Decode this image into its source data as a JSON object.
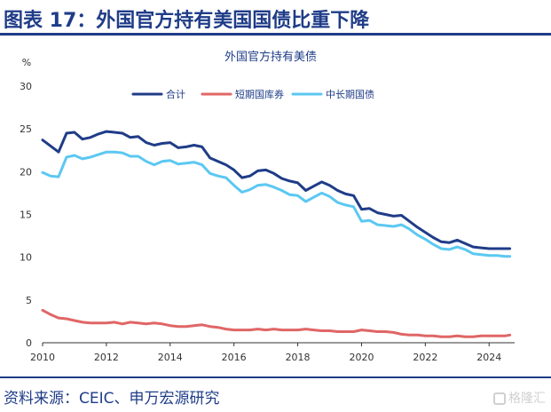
{
  "header": {
    "title": "图表 17：外国官方持有美国国债比重下降"
  },
  "source": "资料来源：CEIC、申万宏源研究",
  "watermark": "格隆汇",
  "colors": {
    "brand": "#1f3c88"
  },
  "chart_data": {
    "type": "line",
    "title": "外国官方持有美债",
    "unit": "%",
    "ylim": [
      0,
      30
    ],
    "yticks": [
      0,
      5,
      10,
      15,
      20,
      25,
      30
    ],
    "xlim": [
      2010,
      2024.8
    ],
    "xticks": [
      2010,
      2012,
      2014,
      2016,
      2018,
      2020,
      2022,
      2024
    ],
    "grid": false,
    "legend_position": "top",
    "series": [
      {
        "name": "合计",
        "color": "#1f3c88",
        "x": [
          2010.0,
          2010.25,
          2010.5,
          2010.75,
          2011.0,
          2011.25,
          2011.5,
          2011.75,
          2012.0,
          2012.25,
          2012.5,
          2012.75,
          2013.0,
          2013.25,
          2013.5,
          2013.75,
          2014.0,
          2014.25,
          2014.5,
          2014.75,
          2015.0,
          2015.25,
          2015.5,
          2015.75,
          2016.0,
          2016.25,
          2016.5,
          2016.75,
          2017.0,
          2017.25,
          2017.5,
          2017.75,
          2018.0,
          2018.25,
          2018.5,
          2018.75,
          2019.0,
          2019.25,
          2019.5,
          2019.75,
          2020.0,
          2020.25,
          2020.5,
          2020.75,
          2021.0,
          2021.25,
          2021.5,
          2021.75,
          2022.0,
          2022.25,
          2022.5,
          2022.75,
          2023.0,
          2023.25,
          2023.5,
          2023.75,
          2024.0,
          2024.25,
          2024.5,
          2024.65
        ],
        "values": [
          23.7,
          23.0,
          22.3,
          24.5,
          24.6,
          23.8,
          24.0,
          24.4,
          24.7,
          24.6,
          24.5,
          24.0,
          24.1,
          23.4,
          23.1,
          23.3,
          23.4,
          22.8,
          22.9,
          23.1,
          22.9,
          21.6,
          21.2,
          20.8,
          20.2,
          19.3,
          19.5,
          20.1,
          20.2,
          19.8,
          19.2,
          18.9,
          18.7,
          17.8,
          18.3,
          18.8,
          18.4,
          17.8,
          17.4,
          17.2,
          15.6,
          15.7,
          15.2,
          15.0,
          14.8,
          14.9,
          14.2,
          13.5,
          12.9,
          12.3,
          11.8,
          11.7,
          12.0,
          11.6,
          11.2,
          11.1,
          11.0,
          11.0,
          11.0,
          11.0
        ]
      },
      {
        "name": "短期国库券",
        "color": "#e06666",
        "x": [
          2010.0,
          2010.25,
          2010.5,
          2010.75,
          2011.0,
          2011.25,
          2011.5,
          2011.75,
          2012.0,
          2012.25,
          2012.5,
          2012.75,
          2013.0,
          2013.25,
          2013.5,
          2013.75,
          2014.0,
          2014.25,
          2014.5,
          2014.75,
          2015.0,
          2015.25,
          2015.5,
          2015.75,
          2016.0,
          2016.25,
          2016.5,
          2016.75,
          2017.0,
          2017.25,
          2017.5,
          2017.75,
          2018.0,
          2018.25,
          2018.5,
          2018.75,
          2019.0,
          2019.25,
          2019.5,
          2019.75,
          2020.0,
          2020.25,
          2020.5,
          2020.75,
          2021.0,
          2021.25,
          2021.5,
          2021.75,
          2022.0,
          2022.25,
          2022.5,
          2022.75,
          2023.0,
          2023.25,
          2023.5,
          2023.75,
          2024.0,
          2024.25,
          2024.5,
          2024.65
        ],
        "values": [
          3.8,
          3.3,
          2.9,
          2.8,
          2.6,
          2.4,
          2.3,
          2.3,
          2.3,
          2.4,
          2.2,
          2.4,
          2.3,
          2.2,
          2.3,
          2.2,
          2.0,
          1.9,
          1.9,
          2.0,
          2.1,
          1.9,
          1.8,
          1.6,
          1.5,
          1.5,
          1.5,
          1.6,
          1.5,
          1.6,
          1.5,
          1.5,
          1.5,
          1.6,
          1.5,
          1.4,
          1.4,
          1.3,
          1.3,
          1.3,
          1.5,
          1.4,
          1.3,
          1.3,
          1.2,
          1.0,
          0.9,
          0.9,
          0.8,
          0.8,
          0.7,
          0.7,
          0.8,
          0.7,
          0.7,
          0.8,
          0.8,
          0.8,
          0.8,
          0.9
        ]
      },
      {
        "name": "中长期国债",
        "color": "#5bc8f2",
        "x": [
          2010.0,
          2010.25,
          2010.5,
          2010.75,
          2011.0,
          2011.25,
          2011.5,
          2011.75,
          2012.0,
          2012.25,
          2012.5,
          2012.75,
          2013.0,
          2013.25,
          2013.5,
          2013.75,
          2014.0,
          2014.25,
          2014.5,
          2014.75,
          2015.0,
          2015.25,
          2015.5,
          2015.75,
          2016.0,
          2016.25,
          2016.5,
          2016.75,
          2017.0,
          2017.25,
          2017.5,
          2017.75,
          2018.0,
          2018.25,
          2018.5,
          2018.75,
          2019.0,
          2019.25,
          2019.5,
          2019.75,
          2020.0,
          2020.25,
          2020.5,
          2020.75,
          2021.0,
          2021.25,
          2021.5,
          2021.75,
          2022.0,
          2022.25,
          2022.5,
          2022.75,
          2023.0,
          2023.25,
          2023.5,
          2023.75,
          2024.0,
          2024.25,
          2024.5,
          2024.65
        ],
        "values": [
          19.9,
          19.5,
          19.4,
          21.7,
          21.9,
          21.5,
          21.7,
          22.0,
          22.3,
          22.3,
          22.2,
          21.8,
          21.8,
          21.2,
          20.8,
          21.2,
          21.3,
          20.9,
          21.0,
          21.1,
          20.8,
          19.8,
          19.5,
          19.3,
          18.4,
          17.6,
          17.9,
          18.4,
          18.5,
          18.2,
          17.8,
          17.3,
          17.2,
          16.5,
          17.0,
          17.5,
          17.1,
          16.4,
          16.1,
          15.9,
          14.2,
          14.3,
          13.8,
          13.7,
          13.6,
          13.8,
          13.3,
          12.6,
          12.1,
          11.5,
          11.0,
          10.9,
          11.2,
          10.9,
          10.4,
          10.3,
          10.2,
          10.2,
          10.1,
          10.1
        ]
      }
    ]
  }
}
